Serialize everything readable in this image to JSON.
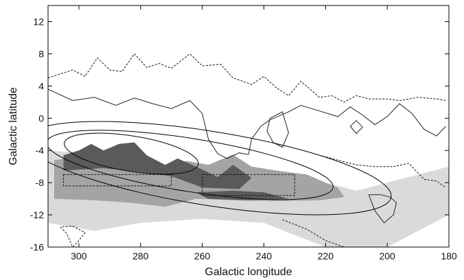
{
  "chart_data": {
    "type": "heatmap",
    "title": "",
    "xlabel": "Galactic longitude",
    "ylabel": "Galactic latitude",
    "xlim": [
      310,
      180
    ],
    "ylim": [
      -16,
      14
    ],
    "x_reversed": true,
    "x_ticks": [
      300,
      280,
      260,
      240,
      220,
      200,
      180
    ],
    "y_ticks": [
      12,
      8,
      4,
      0,
      -4,
      -8,
      -12,
      -16
    ],
    "grid": false,
    "colors": {
      "dark": "#5a5a5a",
      "mid": "#a4a4a4",
      "light": "#dadada",
      "lines": "#000000"
    },
    "shade_regions": [
      {
        "level": "light",
        "points": [
          [
            310,
            -4
          ],
          [
            300,
            -4.3
          ],
          [
            290,
            -5
          ],
          [
            280,
            -5.5
          ],
          [
            270,
            -6
          ],
          [
            260,
            -7
          ],
          [
            250,
            -7.2
          ],
          [
            240,
            -7.5
          ],
          [
            230,
            -7.8
          ],
          [
            220,
            -8
          ],
          [
            210,
            -9
          ],
          [
            200,
            -8
          ],
          [
            190,
            -7
          ],
          [
            180,
            -6
          ],
          [
            180,
            -12
          ],
          [
            190,
            -14
          ],
          [
            200,
            -16
          ],
          [
            220,
            -16
          ],
          [
            240,
            -13
          ],
          [
            260,
            -12.5
          ],
          [
            280,
            -13
          ],
          [
            295,
            -14
          ],
          [
            310,
            -13
          ]
        ]
      },
      {
        "level": "mid",
        "points": [
          [
            308,
            -5.2
          ],
          [
            300,
            -4.8
          ],
          [
            290,
            -5
          ],
          [
            280,
            -5.5
          ],
          [
            272,
            -6
          ],
          [
            265,
            -5.3
          ],
          [
            258,
            -5.8
          ],
          [
            250,
            -4.5
          ],
          [
            244,
            -6
          ],
          [
            236,
            -6.5
          ],
          [
            226,
            -7
          ],
          [
            220,
            -8
          ],
          [
            216,
            -8.6
          ],
          [
            214,
            -9.8
          ],
          [
            222,
            -10.2
          ],
          [
            235,
            -10.3
          ],
          [
            250,
            -10.2
          ],
          [
            262,
            -10
          ],
          [
            272,
            -11
          ],
          [
            283,
            -10.5
          ],
          [
            295,
            -10.2
          ],
          [
            308,
            -10
          ]
        ]
      },
      {
        "level": "dark",
        "points": [
          [
            305,
            -4.6
          ],
          [
            300,
            -4
          ],
          [
            296,
            -3.2
          ],
          [
            292,
            -4
          ],
          [
            287,
            -3.2
          ],
          [
            282,
            -3
          ],
          [
            278,
            -4.6
          ],
          [
            275,
            -5.2
          ],
          [
            272,
            -5.8
          ],
          [
            268,
            -5
          ],
          [
            262,
            -6
          ],
          [
            255,
            -7.3
          ],
          [
            250,
            -5.8
          ],
          [
            244,
            -7.4
          ],
          [
            248,
            -8.8
          ],
          [
            260,
            -8.6
          ],
          [
            270,
            -7.2
          ],
          [
            280,
            -6.7
          ],
          [
            292,
            -6.2
          ],
          [
            305,
            -6.5
          ]
        ]
      },
      {
        "level": "dark",
        "points": [
          [
            262,
            -9.2
          ],
          [
            250,
            -9
          ],
          [
            240,
            -9.2
          ],
          [
            232,
            -10
          ],
          [
            245,
            -10.2
          ],
          [
            258,
            -10
          ]
        ]
      }
    ],
    "ellipses": [
      {
        "center": [
          283,
          -4.4
        ],
        "semi_axis_lon": 22,
        "semi_axis_lat": 2.2,
        "tilt_deg": 9
      },
      {
        "center": [
          264,
          -5.8
        ],
        "semi_axis_lon": 47,
        "semi_axis_lat": 3.3,
        "tilt_deg": 9
      },
      {
        "center": [
          258,
          -6.2
        ],
        "semi_axis_lon": 60,
        "semi_axis_lat": 4.6,
        "tilt_deg": 9
      }
    ],
    "dashed_boxes": [
      {
        "lon": [
          305,
          270
        ],
        "lat": [
          -8.4,
          -7
        ]
      },
      {
        "lon": [
          260,
          230
        ],
        "lat": [
          -9.6,
          -7
        ]
      }
    ],
    "solid_contours": [
      [
        [
          310,
          3.6
        ],
        [
          302,
          2.2
        ],
        [
          295,
          2.6
        ],
        [
          288,
          1.6
        ],
        [
          282,
          2.5
        ],
        [
          276,
          1.8
        ],
        [
          270,
          1.2
        ],
        [
          264,
          2.2
        ],
        [
          260,
          0.6
        ],
        [
          258,
          -2.6
        ],
        [
          255,
          -4.4
        ],
        [
          252,
          -5
        ],
        [
          248,
          -4.3
        ],
        [
          245,
          -4.5
        ],
        [
          244,
          -2.6
        ],
        [
          241,
          -1
        ],
        [
          238,
          -0.2
        ],
        [
          232,
          0.8
        ],
        [
          228,
          1.6
        ],
        [
          222,
          0.9
        ],
        [
          216,
          0.2
        ],
        [
          212,
          1.4
        ],
        [
          208,
          0.4
        ],
        [
          204,
          -0.8
        ],
        [
          200,
          0.2
        ],
        [
          196,
          1.8
        ],
        [
          192,
          0.6
        ],
        [
          188,
          -1.4
        ],
        [
          184,
          -2.2
        ],
        [
          181,
          -1
        ]
      ],
      [
        [
          238,
          0
        ],
        [
          234,
          0.8
        ],
        [
          232,
          -1.8
        ],
        [
          234,
          -3.6
        ],
        [
          237,
          -3
        ],
        [
          239,
          -1.6
        ],
        [
          238,
          0
        ]
      ],
      [
        [
          212,
          -1
        ],
        [
          210,
          -1.9
        ],
        [
          208,
          -1.1
        ],
        [
          210,
          -0.3
        ],
        [
          212,
          -1
        ]
      ],
      [
        [
          206,
          -9.5
        ],
        [
          204,
          -11.5
        ],
        [
          201,
          -13
        ],
        [
          198,
          -12
        ],
        [
          197,
          -10.5
        ],
        [
          199,
          -9.8
        ],
        [
          202,
          -9.5
        ],
        [
          206,
          -9.5
        ]
      ]
    ],
    "dashed_contours": [
      [
        [
          310,
          5
        ],
        [
          302,
          6
        ],
        [
          298,
          5.2
        ],
        [
          294,
          7.5
        ],
        [
          290,
          6
        ],
        [
          286,
          5.8
        ],
        [
          282,
          8
        ],
        [
          278,
          6.3
        ],
        [
          274,
          6.8
        ],
        [
          270,
          6.2
        ],
        [
          264,
          8
        ],
        [
          260,
          6.5
        ],
        [
          254,
          6.7
        ],
        [
          250,
          5
        ],
        [
          244,
          4.2
        ],
        [
          240,
          5.2
        ],
        [
          236,
          3.8
        ],
        [
          232,
          2.8
        ],
        [
          228,
          4.6
        ],
        [
          222,
          2.6
        ],
        [
          218,
          2.8
        ],
        [
          214,
          2
        ],
        [
          210,
          2.8
        ],
        [
          206,
          2.4
        ],
        [
          200,
          2.4
        ],
        [
          196,
          2.2
        ],
        [
          190,
          2.6
        ],
        [
          184,
          2.4
        ],
        [
          181,
          2.2
        ]
      ],
      [
        [
          222,
          -4.6
        ],
        [
          216,
          -5.2
        ],
        [
          210,
          -5.8
        ],
        [
          204,
          -6
        ],
        [
          198,
          -6
        ],
        [
          193,
          -5.6
        ],
        [
          188,
          -7.6
        ],
        [
          184,
          -7.8
        ],
        [
          181,
          -8.6
        ]
      ],
      [
        [
          306,
          -13.5
        ],
        [
          304,
          -14.3
        ],
        [
          302,
          -16
        ],
        [
          300,
          -15.2
        ],
        [
          298,
          -14.2
        ],
        [
          302,
          -13.4
        ],
        [
          306,
          -13.5
        ]
      ],
      [
        [
          234,
          -12.6
        ],
        [
          226,
          -13.8
        ],
        [
          220,
          -15.2
        ],
        [
          214,
          -16
        ]
      ]
    ]
  }
}
